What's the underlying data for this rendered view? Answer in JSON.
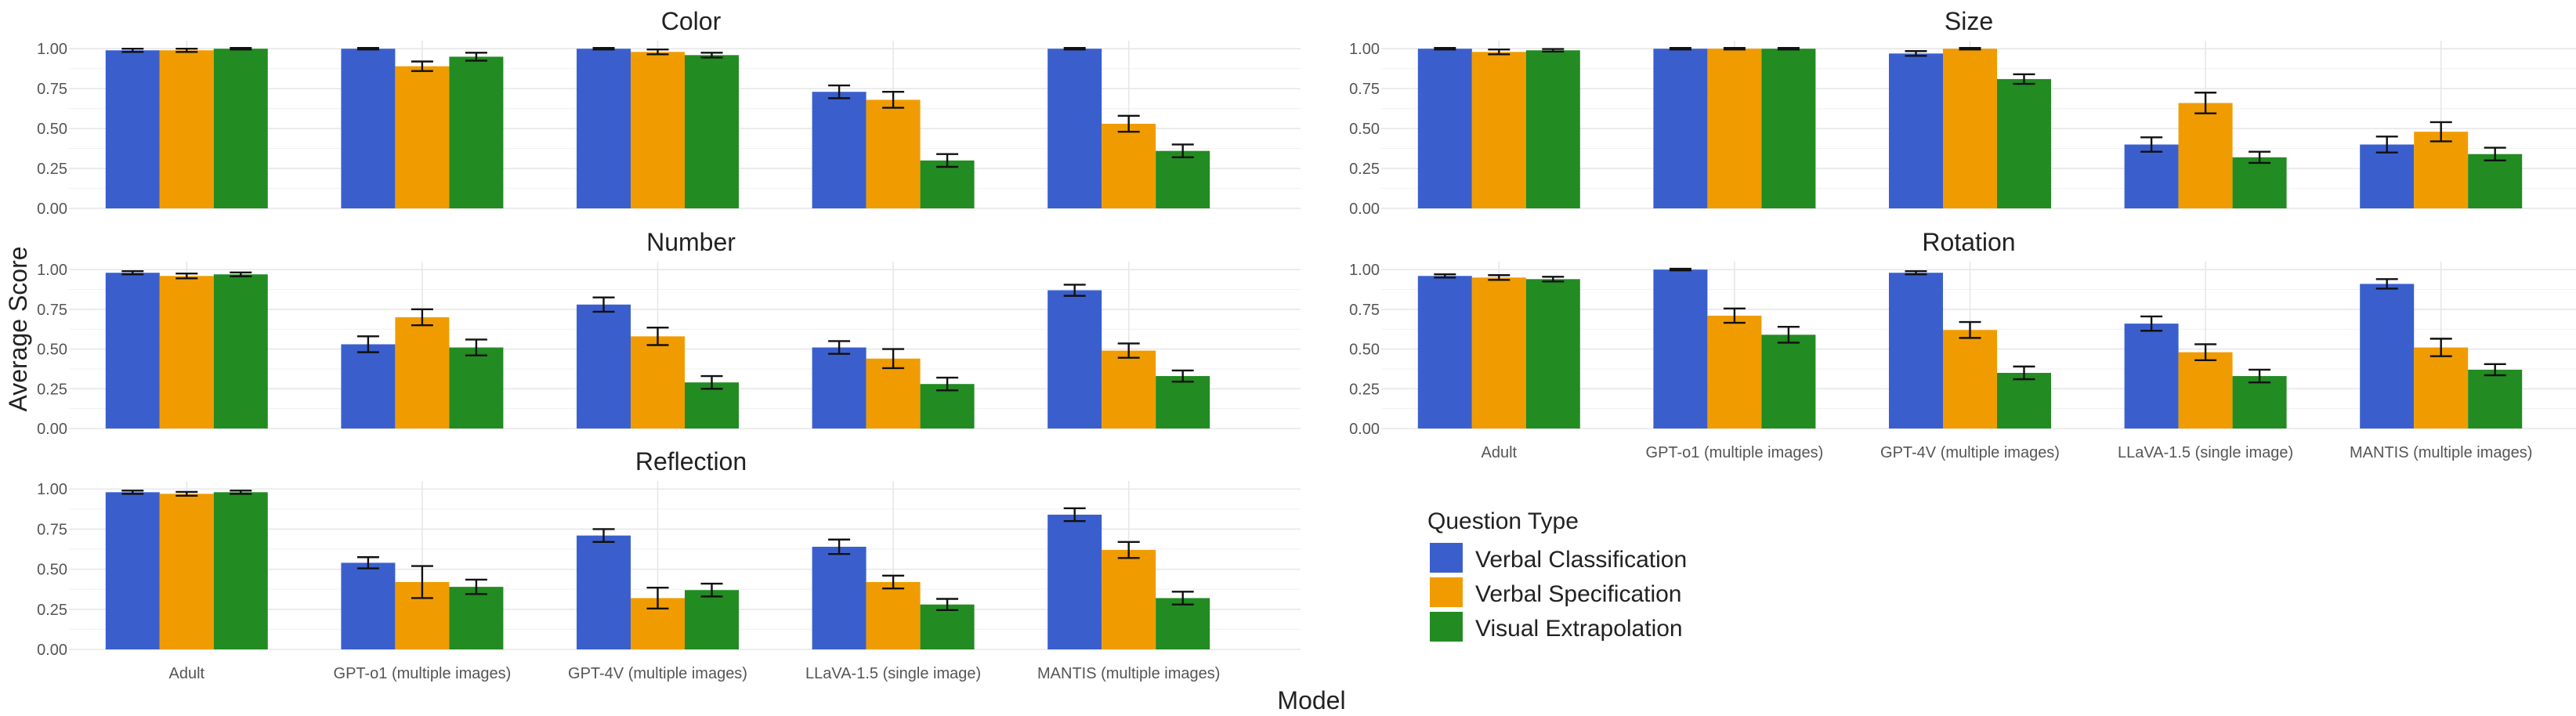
{
  "chart_data": {
    "type": "bar",
    "xlabel": "Model",
    "ylabel": "Average Score",
    "ylim": [
      0,
      1.05
    ],
    "yticks": [
      "0.00",
      "0.25",
      "0.50",
      "0.75",
      "1.00"
    ],
    "categories": [
      "Adult",
      "GPT-o1 (multiple images)",
      "GPT-4V (multiple images)",
      "LLaVA-1.5 (single image)",
      "MANTIS (multiple images)"
    ],
    "legend": {
      "title": "Question Type",
      "position": "bottom-right",
      "items": [
        {
          "name": "Verbal Classification",
          "color": "#3a5fcd"
        },
        {
          "name": "Verbal Specification",
          "color": "#f09c00"
        },
        {
          "name": "Visual Extrapolation",
          "color": "#228b22"
        }
      ]
    },
    "panels": [
      {
        "title": "Color",
        "series": [
          {
            "name": "Verbal Classification",
            "values": [
              0.99,
              1.0,
              1.0,
              0.73,
              1.0
            ],
            "errors": [
              0.01,
              0.005,
              0.005,
              0.04,
              0.005
            ]
          },
          {
            "name": "Verbal Specification",
            "values": [
              0.99,
              0.89,
              0.98,
              0.68,
              0.53
            ],
            "errors": [
              0.01,
              0.03,
              0.015,
              0.05,
              0.05
            ]
          },
          {
            "name": "Visual Extrapolation",
            "values": [
              1.0,
              0.95,
              0.96,
              0.3,
              0.36
            ],
            "errors": [
              0.005,
              0.025,
              0.015,
              0.04,
              0.04
            ]
          }
        ]
      },
      {
        "title": "Size",
        "series": [
          {
            "name": "Verbal Classification",
            "values": [
              1.0,
              1.0,
              0.97,
              0.4,
              0.4
            ],
            "errors": [
              0.005,
              0.005,
              0.015,
              0.045,
              0.05
            ]
          },
          {
            "name": "Verbal Specification",
            "values": [
              0.98,
              1.0,
              1.0,
              0.66,
              0.48
            ],
            "errors": [
              0.015,
              0.005,
              0.005,
              0.065,
              0.06
            ]
          },
          {
            "name": "Visual Extrapolation",
            "values": [
              0.99,
              1.0,
              0.81,
              0.32,
              0.34
            ],
            "errors": [
              0.008,
              0.005,
              0.03,
              0.035,
              0.04
            ]
          }
        ]
      },
      {
        "title": "Number",
        "series": [
          {
            "name": "Verbal Classification",
            "values": [
              0.98,
              0.53,
              0.78,
              0.51,
              0.87
            ],
            "errors": [
              0.01,
              0.05,
              0.045,
              0.04,
              0.035
            ]
          },
          {
            "name": "Verbal Specification",
            "values": [
              0.96,
              0.7,
              0.58,
              0.44,
              0.49
            ],
            "errors": [
              0.015,
              0.05,
              0.055,
              0.06,
              0.045
            ]
          },
          {
            "name": "Visual Extrapolation",
            "values": [
              0.97,
              0.51,
              0.29,
              0.28,
              0.33
            ],
            "errors": [
              0.012,
              0.05,
              0.04,
              0.04,
              0.035
            ]
          }
        ]
      },
      {
        "title": "Rotation",
        "series": [
          {
            "name": "Verbal Classification",
            "values": [
              0.96,
              1.0,
              0.98,
              0.66,
              0.91
            ],
            "errors": [
              0.01,
              0.005,
              0.01,
              0.045,
              0.03
            ]
          },
          {
            "name": "Verbal Specification",
            "values": [
              0.95,
              0.71,
              0.62,
              0.48,
              0.51
            ],
            "errors": [
              0.015,
              0.045,
              0.05,
              0.05,
              0.055
            ]
          },
          {
            "name": "Visual Extrapolation",
            "values": [
              0.94,
              0.59,
              0.35,
              0.33,
              0.37
            ],
            "errors": [
              0.015,
              0.05,
              0.04,
              0.04,
              0.035
            ]
          }
        ]
      },
      {
        "title": "Reflection",
        "series": [
          {
            "name": "Verbal Classification",
            "values": [
              0.98,
              0.54,
              0.71,
              0.64,
              0.84
            ],
            "errors": [
              0.01,
              0.035,
              0.04,
              0.045,
              0.04
            ]
          },
          {
            "name": "Verbal Specification",
            "values": [
              0.97,
              0.42,
              0.32,
              0.42,
              0.62
            ],
            "errors": [
              0.012,
              0.1,
              0.065,
              0.04,
              0.05
            ]
          },
          {
            "name": "Visual Extrapolation",
            "values": [
              0.98,
              0.39,
              0.37,
              0.28,
              0.32
            ],
            "errors": [
              0.01,
              0.045,
              0.04,
              0.035,
              0.04
            ]
          }
        ]
      }
    ]
  }
}
